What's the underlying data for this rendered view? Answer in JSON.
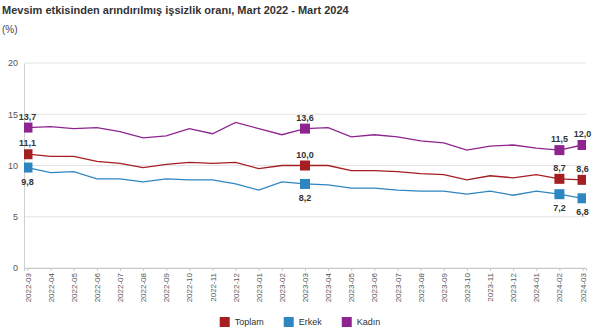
{
  "chart_data": {
    "type": "line",
    "title": "Mevsim etkisinden arındırılmış işsizlik oranı, Mart 2022 - Mart 2024",
    "y_label": "(%)",
    "categories": [
      "2022-03",
      "2022-04",
      "2022-05",
      "2022-06",
      "2022-07",
      "2022-08",
      "2022-09",
      "2022-10",
      "2022-11",
      "2022-12",
      "2023-01",
      "2023-02",
      "2023-03",
      "2023-04",
      "2023-05",
      "2023-06",
      "2023-07",
      "2023-08",
      "2023-09",
      "2023-10",
      "2023-11",
      "2023-12",
      "2024-01",
      "2024-02",
      "2024-03"
    ],
    "series": [
      {
        "name": "Toplam",
        "color": "#a51e22",
        "marker": "square",
        "values": [
          11.1,
          10.9,
          10.9,
          10.4,
          10.2,
          9.8,
          10.1,
          10.3,
          10.2,
          10.3,
          9.7,
          10.0,
          10.0,
          10.0,
          9.5,
          9.5,
          9.4,
          9.2,
          9.1,
          8.6,
          9.0,
          8.8,
          9.1,
          8.7,
          8.6
        ],
        "value_labels": [
          "11,1",
          null,
          null,
          null,
          null,
          null,
          null,
          null,
          null,
          null,
          null,
          null,
          "10,0",
          null,
          null,
          null,
          null,
          null,
          null,
          null,
          null,
          null,
          null,
          "8,7",
          "8,6"
        ]
      },
      {
        "name": "Erkek",
        "color": "#2e86c1",
        "marker": "square",
        "values": [
          9.8,
          9.3,
          9.4,
          8.7,
          8.7,
          8.4,
          8.7,
          8.6,
          8.6,
          8.2,
          7.6,
          8.4,
          8.2,
          8.1,
          7.8,
          7.8,
          7.6,
          7.5,
          7.5,
          7.2,
          7.5,
          7.1,
          7.5,
          7.2,
          6.8
        ],
        "value_labels": [
          "9,8",
          null,
          null,
          null,
          null,
          null,
          null,
          null,
          null,
          null,
          null,
          null,
          "8,2",
          null,
          null,
          null,
          null,
          null,
          null,
          null,
          null,
          null,
          null,
          "7,2",
          "6,8"
        ]
      },
      {
        "name": "Kadın",
        "color": "#8e248f",
        "marker": "square",
        "values": [
          13.7,
          13.8,
          13.6,
          13.7,
          13.3,
          12.7,
          12.9,
          13.6,
          13.1,
          14.2,
          13.6,
          13.0,
          13.6,
          13.7,
          12.8,
          13.0,
          12.8,
          12.4,
          12.2,
          11.5,
          11.9,
          12.0,
          11.7,
          11.5,
          12.0
        ],
        "value_labels": [
          "13,7",
          null,
          null,
          null,
          null,
          null,
          null,
          null,
          null,
          null,
          null,
          null,
          "13,6",
          null,
          null,
          null,
          null,
          null,
          null,
          null,
          null,
          null,
          null,
          "11,5",
          "12,0"
        ]
      }
    ],
    "ylim": [
      0,
      20
    ],
    "yticks": [
      0,
      5,
      10,
      15,
      20
    ],
    "grid": true,
    "legend": "bottom",
    "data_labels": true
  }
}
